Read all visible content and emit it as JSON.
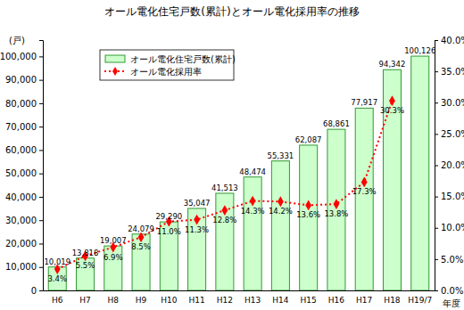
{
  "chart_data": {
    "type": "bar",
    "title": "オール電化住宅戸数(累計)とオール電化採用率の推移",
    "ylabel": "(戸)",
    "xlabel": "年度",
    "categories": [
      "H6",
      "H7",
      "H8",
      "H9",
      "H10",
      "H11",
      "H12",
      "H13",
      "H14",
      "H15",
      "H16",
      "H17",
      "H18",
      "H19/7"
    ],
    "series": [
      {
        "name": "オール電化住宅戸数(累計)",
        "type": "bar",
        "color": "#ccffcc",
        "values": [
          10019,
          13818,
          19007,
          24079,
          29290,
          35047,
          41513,
          48474,
          55331,
          62087,
          68861,
          77917,
          94342,
          100126
        ],
        "value_labels": [
          "10,019",
          "13,818",
          "19,007",
          "24,079",
          "29,290",
          "35,047",
          "41,513",
          "48,474",
          "55,331",
          "62,087",
          "68,861",
          "77,917",
          "94,342",
          "100,126"
        ]
      },
      {
        "name": "オール電化採用率",
        "type": "line",
        "axis": "y2",
        "color": "#ff0000",
        "marker": "diamond",
        "line_style": "dotted",
        "values": [
          3.4,
          5.5,
          6.9,
          8.5,
          11.0,
          11.3,
          12.8,
          14.3,
          14.2,
          13.6,
          13.8,
          17.3,
          30.3,
          null
        ],
        "value_labels": [
          "3.4%",
          "5.5%",
          "6.9%",
          "8.5%",
          "11.0%",
          "11.3%",
          "12.8%",
          "14.3%",
          "14.2%",
          "13.6%",
          "13.8%",
          "17.3%",
          "30.3%",
          null
        ]
      }
    ],
    "ylim": [
      0,
      107000
    ],
    "yticks": [
      0,
      {
        "value": 10000,
        "label": "10,000"
      },
      {
        "value": 20000,
        "label": "20,000"
      },
      {
        "value": 30000,
        "label": "30,000"
      },
      {
        "value": 40000,
        "label": "40,000"
      },
      {
        "value": 50000,
        "label": "50,000"
      },
      {
        "value": 60000,
        "label": "60,000"
      },
      {
        "value": 70000,
        "label": "70,000"
      },
      {
        "value": 80000,
        "label": "80,000"
      },
      {
        "value": 90000,
        "label": "90,000"
      },
      {
        "value": 100000,
        "label": "100,000"
      }
    ],
    "y2lim": [
      0,
      40
    ],
    "y2ticks": [
      {
        "value": 0,
        "label": "0.0%"
      },
      {
        "value": 5,
        "label": "5.0%"
      },
      {
        "value": 10,
        "label": "10.0%"
      },
      {
        "value": 15,
        "label": "15.0%"
      },
      {
        "value": 20,
        "label": "20.0%"
      },
      {
        "value": 25,
        "label": "25.0%"
      },
      {
        "value": 30,
        "label": "30.0%"
      },
      {
        "value": 35,
        "label": "35.0%"
      },
      {
        "value": 40,
        "label": "40.0%"
      }
    ],
    "grid": false,
    "legend": "upper left",
    "data_labels": true
  }
}
